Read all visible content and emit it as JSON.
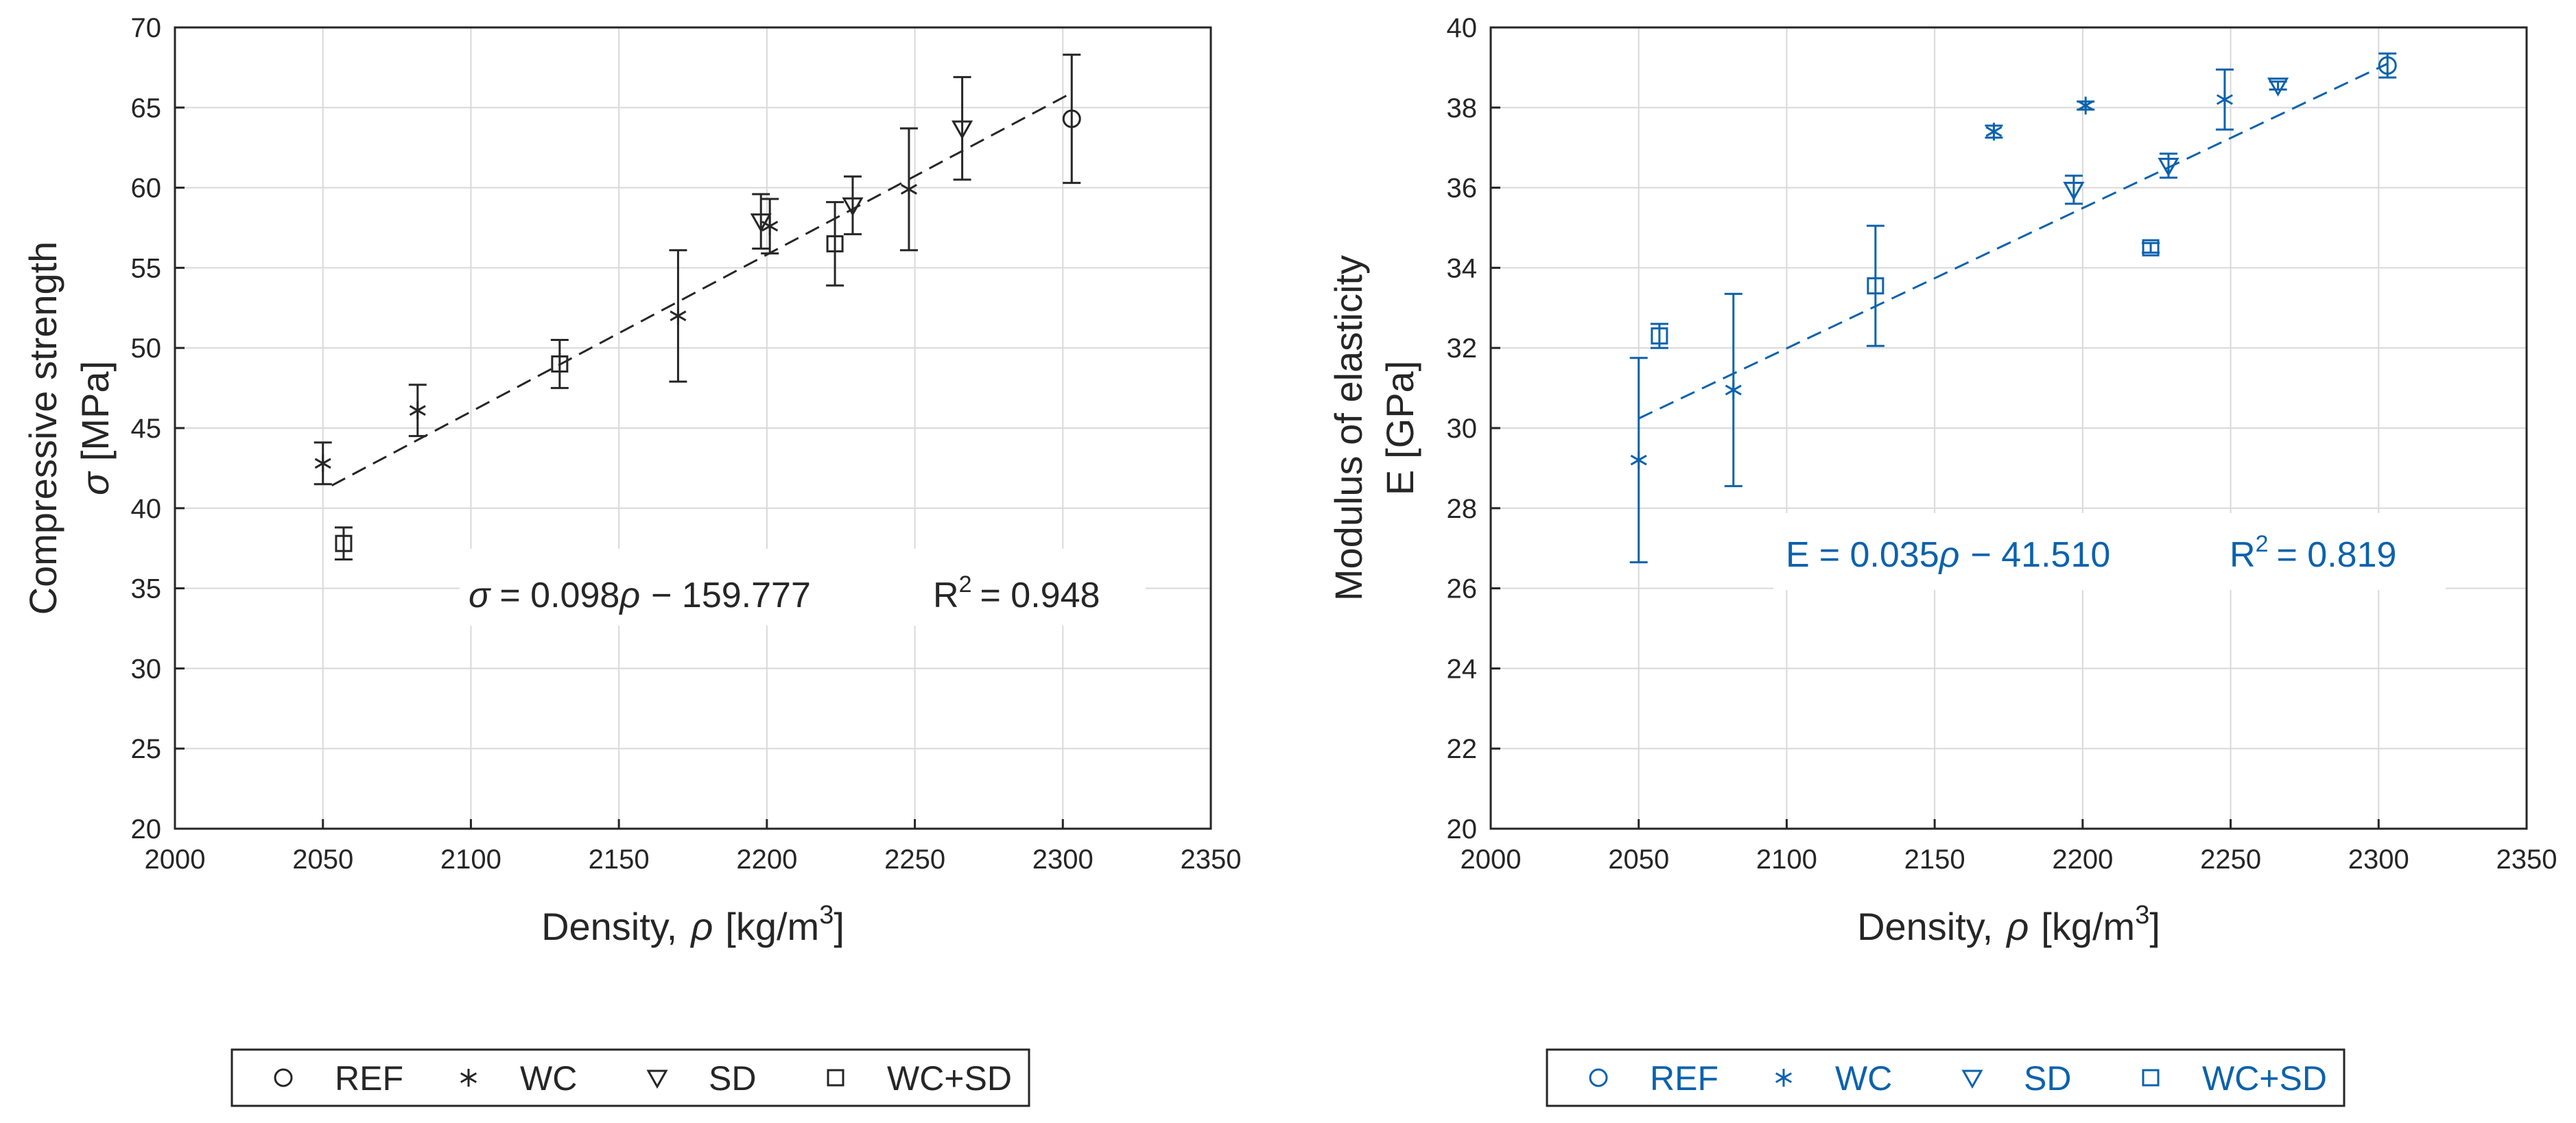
{
  "chart_data": [
    {
      "type": "scatter",
      "color": "#262626",
      "xlabel_prefix": "Density,",
      "xlabel_symbol": "ρ",
      "xlabel_unit": "[kg/m",
      "xlabel_exp": "3",
      "xlabel_close": "]",
      "ylabel_line1": "Compressive strength",
      "ylabel_symbol": "σ",
      "ylabel_unit": "[MPa]",
      "xlim": [
        2000,
        2350
      ],
      "ylim": [
        20,
        70
      ],
      "xticks": [
        2000,
        2050,
        2100,
        2150,
        2200,
        2250,
        2300,
        2350
      ],
      "yticks": [
        20,
        25,
        30,
        35,
        40,
        45,
        50,
        55,
        60,
        65,
        70
      ],
      "fit": {
        "slope": 0.098,
        "intercept": -159.777,
        "x_range": [
          2053,
          2303
        ]
      },
      "equation": {
        "lhs": "σ",
        "eq": "= 0.098",
        "var": "ρ",
        "rest": "−  159.777",
        "r2_prefix": "R",
        "r2_exp": "2",
        "r2_value": "= 0.948"
      },
      "series": [
        {
          "name": "REF",
          "marker": "circle",
          "points": [
            {
              "x": 2303,
              "y": 64.3,
              "err": 4.0
            }
          ]
        },
        {
          "name": "WC",
          "marker": "star",
          "points": [
            {
              "x": 2050,
              "y": 42.8,
              "err": 1.3
            },
            {
              "x": 2082,
              "y": 46.1,
              "err": 1.6
            },
            {
              "x": 2170,
              "y": 52.0,
              "err": 4.1
            },
            {
              "x": 2201,
              "y": 57.6,
              "err": 1.7
            },
            {
              "x": 2248,
              "y": 59.9,
              "err": 3.8
            }
          ]
        },
        {
          "name": "SD",
          "marker": "triangle",
          "points": [
            {
              "x": 2198,
              "y": 57.9,
              "err": 1.7
            },
            {
              "x": 2229,
              "y": 58.9,
              "err": 1.8
            },
            {
              "x": 2266,
              "y": 63.7,
              "err": 3.2
            }
          ]
        },
        {
          "name": "WC+SD",
          "marker": "square",
          "points": [
            {
              "x": 2057,
              "y": 37.8,
              "err": 1.0
            },
            {
              "x": 2130,
              "y": 49.0,
              "err": 1.5
            },
            {
              "x": 2223,
              "y": 56.5,
              "err": 2.6
            }
          ]
        }
      ]
    },
    {
      "type": "scatter",
      "color": "#0b62ad",
      "xlabel_prefix": "Density,",
      "xlabel_symbol": "ρ",
      "xlabel_unit": "[kg/m",
      "xlabel_exp": "3",
      "xlabel_close": "]",
      "ylabel_line1": "Modulus of elasticity",
      "ylabel_symbol": "E",
      "ylabel_unit": "[GPa]",
      "xlim": [
        2000,
        2350
      ],
      "ylim": [
        20,
        40
      ],
      "xticks": [
        2000,
        2050,
        2100,
        2150,
        2200,
        2250,
        2300,
        2350
      ],
      "yticks": [
        20,
        22,
        24,
        26,
        28,
        30,
        32,
        34,
        36,
        38,
        40
      ],
      "fit": {
        "slope": 0.035,
        "intercept": -41.51,
        "x_range": [
          2050,
          2303
        ]
      },
      "equation": {
        "lhs": "E",
        "eq": "= 0.035",
        "var": "ρ",
        "rest": "−  41.510",
        "r2_prefix": "R",
        "r2_exp": "2",
        "r2_value": "= 0.819"
      },
      "series": [
        {
          "name": "REF",
          "marker": "circle",
          "points": [
            {
              "x": 2303,
              "y": 39.05,
              "err": 0.3
            }
          ]
        },
        {
          "name": "WC",
          "marker": "star",
          "points": [
            {
              "x": 2050,
              "y": 29.2,
              "err": 2.55
            },
            {
              "x": 2082,
              "y": 30.95,
              "err": 2.4
            },
            {
              "x": 2170,
              "y": 37.4,
              "err": 0.15
            },
            {
              "x": 2201,
              "y": 38.05,
              "err": 0.1
            },
            {
              "x": 2248,
              "y": 38.2,
              "err": 0.75
            }
          ]
        },
        {
          "name": "SD",
          "marker": "triangle",
          "points": [
            {
              "x": 2197,
              "y": 35.95,
              "err": 0.35
            },
            {
              "x": 2229,
              "y": 36.55,
              "err": 0.3
            },
            {
              "x": 2266,
              "y": 38.55,
              "err": 0.1
            }
          ]
        },
        {
          "name": "WC+SD",
          "marker": "square",
          "points": [
            {
              "x": 2057,
              "y": 32.3,
              "err": 0.3
            },
            {
              "x": 2130,
              "y": 33.55,
              "err": 1.5
            },
            {
              "x": 2223,
              "y": 34.5,
              "err": 0.12
            }
          ]
        }
      ]
    }
  ]
}
